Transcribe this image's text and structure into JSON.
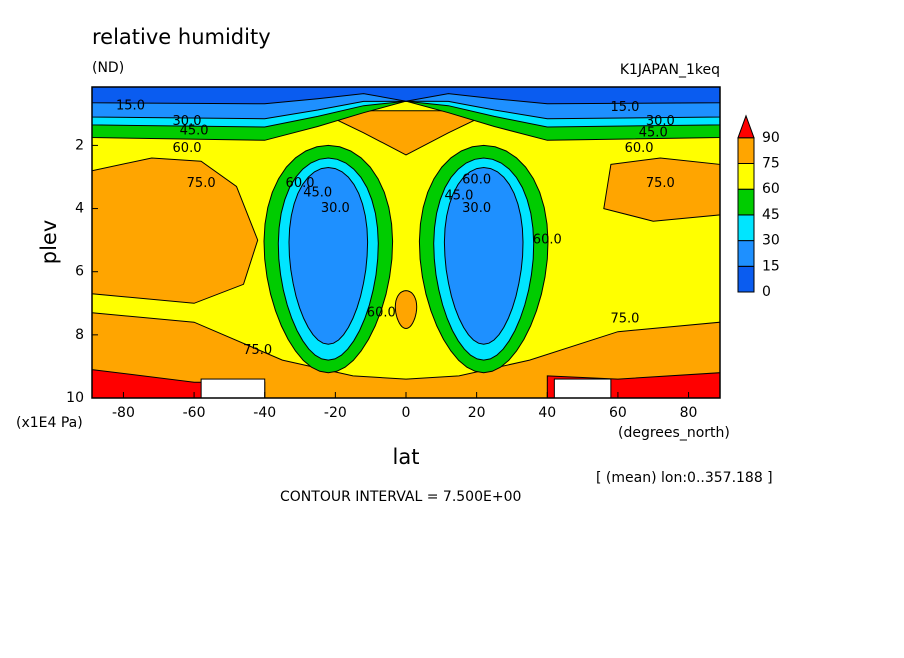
{
  "chart_data": {
    "type": "contour",
    "title": "relative humidity",
    "subtitle": "(ND)",
    "run_label": "K1JAPAN_1keq",
    "xlabel": "lat",
    "ylabel": "plev",
    "x_unit": "(degrees_north)",
    "y_unit": "(x1E4 Pa)",
    "mean_note": "[ (mean) lon:0..357.188 ]",
    "contour_note": "CONTOUR INTERVAL = 7.500E+00",
    "xlim": [
      -88.9,
      88.9
    ],
    "ylim": [
      10,
      0.15
    ],
    "xticks": [
      -80,
      -60,
      -40,
      -20,
      0,
      20,
      40,
      60,
      80
    ],
    "yticks": [
      2,
      4,
      6,
      8,
      10
    ],
    "levels": [
      0,
      15,
      30,
      45,
      60,
      75,
      90
    ],
    "level_colors": [
      "#0a5cf0",
      "#1e90ff",
      "#00e5ff",
      "#00cc00",
      "#ffff00",
      "#ffa500",
      "#ff0000"
    ],
    "contour_labels": [
      "15.0",
      "30.0",
      "45.0",
      "60.0",
      "75.0",
      "15.0",
      "30.0",
      "45.0",
      "60.0",
      "75.0",
      "60.0",
      "45.0",
      "30.0",
      "60.0",
      "45.0",
      "30.0",
      "75.0",
      "75.0",
      "60.0",
      "60.0"
    ]
  }
}
